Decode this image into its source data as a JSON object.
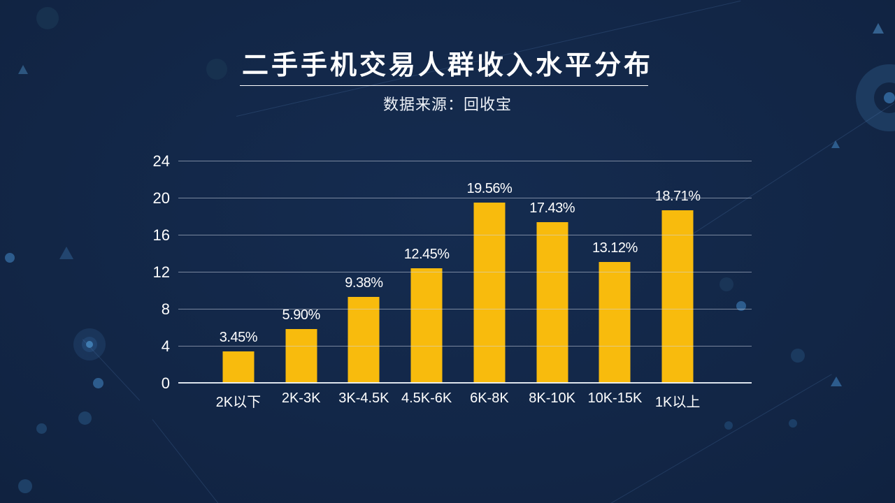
{
  "header": {
    "title": "二手手机交易人群收入水平分布",
    "subtitle": "数据来源：回收宝"
  },
  "colors": {
    "background": "#112443",
    "bar": "#F8BB0D",
    "text": "#FFFFFF",
    "gridline": "#CDD6E4",
    "accent_blue": "#2D5C8D"
  },
  "chart_data": {
    "type": "bar",
    "title": "二手手机交易人群收入水平分布",
    "subtitle": "数据来源：回收宝",
    "categories": [
      "2K以下",
      "2K-3K",
      "3K-4.5K",
      "4.5K-6K",
      "6K-8K",
      "8K-10K",
      "10K-15K",
      "1K以上"
    ],
    "values": [
      3.45,
      5.9,
      9.38,
      12.45,
      19.56,
      17.43,
      13.12,
      18.71
    ],
    "labels": [
      "3.45%",
      "5.90%",
      "9.38%",
      "12.45%",
      "19.56%",
      "17.43%",
      "13.12%",
      "18.71%"
    ],
    "xlabel": "",
    "ylabel": "",
    "ylim": [
      0,
      24
    ],
    "yticks": [
      0,
      4,
      8,
      12,
      16,
      20,
      24
    ],
    "grid": true,
    "legend": "none",
    "bar_color": "#F8BB0D"
  }
}
